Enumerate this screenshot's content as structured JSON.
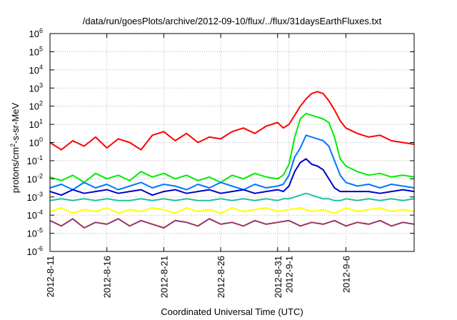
{
  "chart_data": {
    "type": "line",
    "title": "/data/run/goesPlots/archive/2012-09-10/flux/../flux/31daysEarthFluxes.txt",
    "xlabel": "Coordinated Universal Time (UTC)",
    "ylabel": "protons/cm2-s-sr-MeV",
    "yscale": "log",
    "xlim": [
      0,
      32
    ],
    "ylim_exp": [
      -6,
      6
    ],
    "grid": true,
    "x_ticks": [
      {
        "x": 0,
        "label": "2012-8-11"
      },
      {
        "x": 5,
        "label": "2012-8-16"
      },
      {
        "x": 10,
        "label": "2012-8-21"
      },
      {
        "x": 15,
        "label": "2012-8-26"
      },
      {
        "x": 20,
        "label": "2012-8-31"
      },
      {
        "x": 21,
        "label": "2012-9-1"
      },
      {
        "x": 26,
        "label": "2012-9-6"
      }
    ],
    "y_ticks": [
      {
        "exp": -6,
        "label": "10-6"
      },
      {
        "exp": -5,
        "label": "10-5"
      },
      {
        "exp": -4,
        "label": "10-4"
      },
      {
        "exp": -3,
        "label": "10-3"
      },
      {
        "exp": -2,
        "label": "10-2"
      },
      {
        "exp": -1,
        "label": "10-1"
      },
      {
        "exp": 0,
        "label": "100"
      },
      {
        "exp": 1,
        "label": "101"
      },
      {
        "exp": 2,
        "label": "102"
      },
      {
        "exp": 3,
        "label": "103"
      },
      {
        "exp": 4,
        "label": "104"
      },
      {
        "exp": 5,
        "label": "105"
      },
      {
        "exp": 6,
        "label": "106"
      }
    ],
    "series": [
      {
        "color": "#ff0000",
        "x": [
          0,
          1,
          2,
          3,
          4,
          5,
          6,
          7,
          8,
          9,
          10,
          11,
          12,
          13,
          14,
          15,
          16,
          17,
          18,
          19,
          20,
          20.5,
          21,
          21.5,
          22,
          22.5,
          23,
          23.5,
          24,
          24.5,
          25,
          25.5,
          26,
          27,
          28,
          29,
          30,
          31,
          32
        ],
        "log10_y": [
          0.0,
          -0.4,
          0.1,
          -0.2,
          0.3,
          -0.3,
          0.2,
          0.0,
          -0.4,
          0.4,
          0.6,
          0.1,
          0.5,
          0.0,
          0.3,
          0.2,
          0.6,
          0.8,
          0.5,
          0.9,
          1.1,
          0.8,
          1.0,
          1.5,
          2.0,
          2.4,
          2.7,
          2.8,
          2.7,
          2.3,
          1.8,
          1.2,
          0.8,
          0.5,
          0.3,
          0.4,
          0.1,
          0.0,
          -0.1
        ]
      },
      {
        "color": "#00ee00",
        "x": [
          0,
          1,
          2,
          3,
          4,
          5,
          6,
          7,
          8,
          9,
          10,
          11,
          12,
          13,
          14,
          15,
          16,
          17,
          18,
          19,
          20,
          20.5,
          21,
          21.5,
          22,
          22.5,
          23,
          23.5,
          24,
          24.5,
          25,
          25.5,
          26,
          27,
          28,
          29,
          30,
          31,
          32
        ],
        "log10_y": [
          -1.9,
          -2.1,
          -1.8,
          -2.2,
          -1.7,
          -2.0,
          -1.8,
          -2.1,
          -1.6,
          -1.9,
          -1.7,
          -2.0,
          -1.8,
          -2.1,
          -1.9,
          -2.2,
          -1.8,
          -2.0,
          -1.7,
          -1.9,
          -2.0,
          -1.8,
          -1.2,
          0.3,
          1.3,
          1.6,
          1.5,
          1.4,
          1.3,
          1.1,
          0.3,
          -0.9,
          -1.3,
          -1.6,
          -1.8,
          -1.7,
          -1.9,
          -1.8,
          -1.9
        ]
      },
      {
        "color": "#0077ff",
        "x": [
          0,
          1,
          2,
          3,
          4,
          5,
          6,
          7,
          8,
          9,
          10,
          11,
          12,
          13,
          14,
          15,
          16,
          17,
          18,
          19,
          20,
          20.5,
          21,
          21.5,
          22,
          22.5,
          23,
          23.5,
          24,
          24.5,
          25,
          25.5,
          26,
          27,
          28,
          29,
          30,
          31,
          32
        ],
        "log10_y": [
          -2.5,
          -2.3,
          -2.6,
          -2.2,
          -2.5,
          -2.3,
          -2.6,
          -2.4,
          -2.2,
          -2.5,
          -2.3,
          -2.4,
          -2.6,
          -2.3,
          -2.5,
          -2.2,
          -2.4,
          -2.6,
          -2.3,
          -2.5,
          -2.4,
          -2.3,
          -1.8,
          -0.8,
          -0.3,
          0.4,
          0.3,
          0.2,
          0.1,
          -0.2,
          -1.0,
          -1.8,
          -2.2,
          -2.4,
          -2.3,
          -2.5,
          -2.3,
          -2.4,
          -2.5
        ]
      },
      {
        "color": "#0000cc",
        "x": [
          0,
          1,
          2,
          3,
          4,
          5,
          6,
          7,
          8,
          9,
          10,
          11,
          12,
          13,
          14,
          15,
          16,
          17,
          18,
          19,
          20,
          20.5,
          21,
          21.5,
          22,
          22.5,
          23,
          23.5,
          24,
          24.5,
          25,
          25.5,
          26,
          27,
          28,
          29,
          30,
          31,
          32
        ],
        "log10_y": [
          -2.7,
          -2.9,
          -2.6,
          -2.8,
          -2.7,
          -2.6,
          -2.8,
          -2.7,
          -2.6,
          -2.9,
          -2.7,
          -2.6,
          -2.8,
          -2.7,
          -2.6,
          -2.8,
          -2.7,
          -2.6,
          -2.8,
          -2.7,
          -2.6,
          -2.7,
          -2.4,
          -1.6,
          -1.1,
          -0.9,
          -1.2,
          -1.3,
          -1.5,
          -2.0,
          -2.5,
          -2.7,
          -2.7,
          -2.7,
          -2.7,
          -2.8,
          -2.7,
          -2.6,
          -2.7
        ]
      },
      {
        "color": "#20c0a0",
        "x": [
          0,
          1,
          2,
          3,
          4,
          5,
          6,
          7,
          8,
          9,
          10,
          11,
          12,
          13,
          14,
          15,
          16,
          17,
          18,
          19,
          20,
          20.5,
          21,
          21.5,
          22,
          22.5,
          23,
          23.5,
          24,
          24.5,
          25,
          25.5,
          26,
          27,
          28,
          29,
          30,
          31,
          32
        ],
        "log10_y": [
          -3.2,
          -3.1,
          -3.2,
          -3.1,
          -3.2,
          -3.1,
          -3.2,
          -3.2,
          -3.1,
          -3.2,
          -3.1,
          -3.2,
          -3.1,
          -3.2,
          -3.2,
          -3.1,
          -3.2,
          -3.1,
          -3.2,
          -3.1,
          -3.2,
          -3.1,
          -3.1,
          -3.0,
          -2.9,
          -2.8,
          -2.9,
          -3.0,
          -3.1,
          -3.1,
          -3.2,
          -3.2,
          -3.1,
          -3.2,
          -3.1,
          -3.2,
          -3.1,
          -3.2,
          -3.1
        ]
      },
      {
        "color": "#ffff00",
        "x": [
          0,
          1,
          2,
          3,
          4,
          5,
          6,
          7,
          8,
          9,
          10,
          11,
          12,
          13,
          14,
          15,
          16,
          17,
          18,
          19,
          20,
          21,
          22,
          23,
          24,
          25,
          26,
          27,
          28,
          29,
          30,
          31,
          32
        ],
        "log10_y": [
          -3.8,
          -3.6,
          -3.9,
          -3.7,
          -3.8,
          -3.6,
          -3.9,
          -3.7,
          -3.8,
          -3.6,
          -3.7,
          -3.9,
          -3.6,
          -3.8,
          -3.7,
          -3.9,
          -3.6,
          -3.8,
          -3.7,
          -3.6,
          -3.8,
          -3.7,
          -3.6,
          -3.8,
          -3.7,
          -3.9,
          -3.6,
          -3.8,
          -3.7,
          -3.6,
          -3.8,
          -3.7,
          -3.8
        ]
      },
      {
        "color": "#993366",
        "x": [
          0,
          1,
          2,
          3,
          4,
          5,
          6,
          7,
          8,
          9,
          10,
          11,
          12,
          13,
          14,
          15,
          16,
          17,
          18,
          19,
          20,
          21,
          22,
          23,
          24,
          25,
          26,
          27,
          28,
          29,
          30,
          31,
          32
        ],
        "log10_y": [
          -4.3,
          -4.6,
          -4.2,
          -4.7,
          -4.4,
          -4.5,
          -4.2,
          -4.6,
          -4.3,
          -4.5,
          -4.7,
          -4.3,
          -4.4,
          -4.6,
          -4.2,
          -4.5,
          -4.4,
          -4.6,
          -4.3,
          -4.5,
          -4.4,
          -4.3,
          -4.6,
          -4.4,
          -4.5,
          -4.3,
          -4.6,
          -4.4,
          -4.5,
          -4.3,
          -4.6,
          -4.4,
          -4.5
        ]
      }
    ]
  }
}
